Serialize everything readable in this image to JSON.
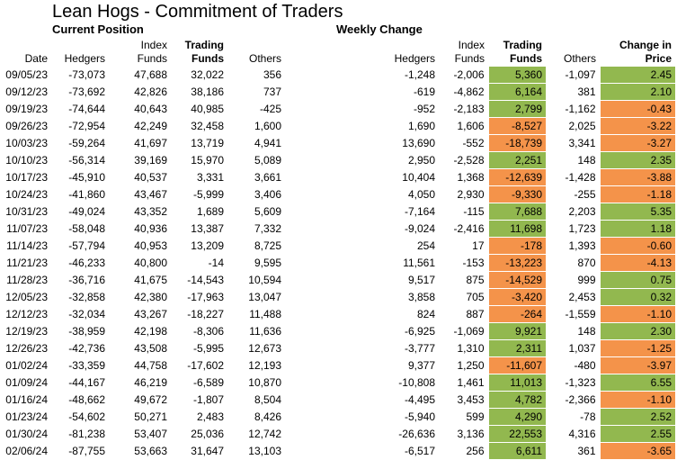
{
  "title": "Lean Hogs - Commitment of Traders",
  "section_current": "Current Position",
  "section_weekly": "Weekly Change",
  "headers": {
    "date": "Date",
    "hedgers": "Hedgers",
    "index_funds": "Index Funds",
    "trading_funds": "Trading Funds",
    "others": "Others",
    "w_hedgers": "Hedgers",
    "w_index_funds": "Index Funds",
    "w_trading_funds": "Trading Funds",
    "w_others": "Others",
    "price_change": "Change in Price"
  },
  "colors": {
    "positive": "#92b84f",
    "negative": "#f4934a"
  },
  "rows": [
    [
      "09/05/23",
      "-73,073",
      "47,688",
      "32,022",
      "356",
      "-1,248",
      "-2,006",
      "5,360",
      "-1,097",
      "2.45"
    ],
    [
      "09/12/23",
      "-73,692",
      "42,826",
      "38,186",
      "737",
      "-619",
      "-4,862",
      "6,164",
      "381",
      "2.10"
    ],
    [
      "09/19/23",
      "-74,644",
      "40,643",
      "40,985",
      "-425",
      "-952",
      "-2,183",
      "2,799",
      "-1,162",
      "-0.43"
    ],
    [
      "09/26/23",
      "-72,954",
      "42,249",
      "32,458",
      "1,600",
      "1,690",
      "1,606",
      "-8,527",
      "2,025",
      "-3.22"
    ],
    [
      "10/03/23",
      "-59,264",
      "41,697",
      "13,719",
      "4,941",
      "13,690",
      "-552",
      "-18,739",
      "3,341",
      "-3.27"
    ],
    [
      "10/10/23",
      "-56,314",
      "39,169",
      "15,970",
      "5,089",
      "2,950",
      "-2,528",
      "2,251",
      "148",
      "2.35"
    ],
    [
      "10/17/23",
      "-45,910",
      "40,537",
      "3,331",
      "3,661",
      "10,404",
      "1,368",
      "-12,639",
      "-1,428",
      "-3.88"
    ],
    [
      "10/24/23",
      "-41,860",
      "43,467",
      "-5,999",
      "3,406",
      "4,050",
      "2,930",
      "-9,330",
      "-255",
      "-1.18"
    ],
    [
      "10/31/23",
      "-49,024",
      "43,352",
      "1,689",
      "5,609",
      "-7,164",
      "-115",
      "7,688",
      "2,203",
      "5.35"
    ],
    [
      "11/07/23",
      "-58,048",
      "40,936",
      "13,387",
      "7,332",
      "-9,024",
      "-2,416",
      "11,698",
      "1,723",
      "1.18"
    ],
    [
      "11/14/23",
      "-57,794",
      "40,953",
      "13,209",
      "8,725",
      "254",
      "17",
      "-178",
      "1,393",
      "-0.60"
    ],
    [
      "11/21/23",
      "-46,233",
      "40,800",
      "-14",
      "9,595",
      "11,561",
      "-153",
      "-13,223",
      "870",
      "-4.13"
    ],
    [
      "11/28/23",
      "-36,716",
      "41,675",
      "-14,543",
      "10,594",
      "9,517",
      "875",
      "-14,529",
      "999",
      "0.75"
    ],
    [
      "12/05/23",
      "-32,858",
      "42,380",
      "-17,963",
      "13,047",
      "3,858",
      "705",
      "-3,420",
      "2,453",
      "0.32"
    ],
    [
      "12/12/23",
      "-32,034",
      "43,267",
      "-18,227",
      "11,488",
      "824",
      "887",
      "-264",
      "-1,559",
      "-1.10"
    ],
    [
      "12/19/23",
      "-38,959",
      "42,198",
      "-8,306",
      "11,636",
      "-6,925",
      "-1,069",
      "9,921",
      "148",
      "2.30"
    ],
    [
      "12/26/23",
      "-42,736",
      "43,508",
      "-5,995",
      "12,673",
      "-3,777",
      "1,310",
      "2,311",
      "1,037",
      "-1.25"
    ],
    [
      "01/02/24",
      "-33,359",
      "44,758",
      "-17,602",
      "12,193",
      "9,377",
      "1,250",
      "-11,607",
      "-480",
      "-3.97"
    ],
    [
      "01/09/24",
      "-44,167",
      "46,219",
      "-6,589",
      "10,870",
      "-10,808",
      "1,461",
      "11,013",
      "-1,323",
      "6.55"
    ],
    [
      "01/16/24",
      "-48,662",
      "49,672",
      "-1,807",
      "8,504",
      "-4,495",
      "3,453",
      "4,782",
      "-2,366",
      "-1.10"
    ],
    [
      "01/23/24",
      "-54,602",
      "50,271",
      "2,483",
      "8,426",
      "-5,940",
      "599",
      "4,290",
      "-78",
      "2.52"
    ],
    [
      "01/30/24",
      "-81,238",
      "53,407",
      "25,036",
      "12,742",
      "-26,636",
      "3,136",
      "22,553",
      "4,316",
      "2.55"
    ],
    [
      "02/06/24",
      "-87,755",
      "53,663",
      "31,647",
      "13,103",
      "-6,517",
      "256",
      "6,611",
      "361",
      "-3.65"
    ]
  ]
}
